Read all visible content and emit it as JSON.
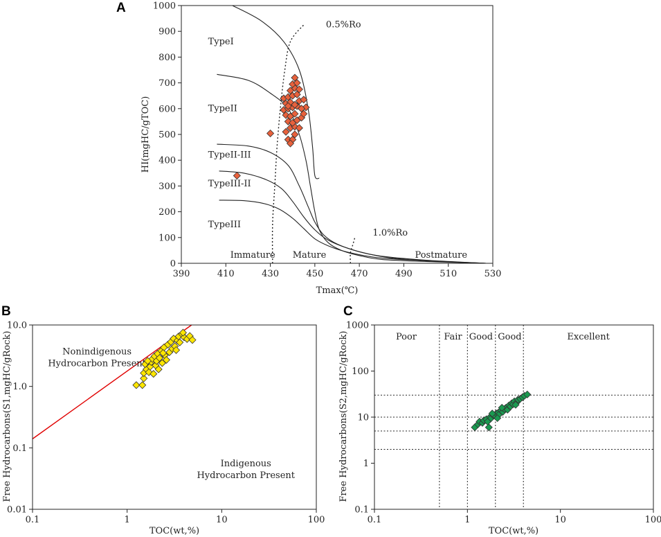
{
  "chart_data": [
    {
      "id": "A",
      "type": "scatter",
      "panel_label": "A",
      "xlabel": "Tmax(℃)",
      "ylabel": "HI(mgHC/gTOC)",
      "xlim": [
        390,
        530
      ],
      "ylim": [
        0,
        1000
      ],
      "xticks": [
        390,
        410,
        430,
        450,
        470,
        490,
        510,
        530
      ],
      "yticks": [
        0,
        100,
        200,
        300,
        400,
        500,
        600,
        700,
        800,
        900,
        1000
      ],
      "marker_color": "#e8613c",
      "type_labels": [
        {
          "text": "TypeI",
          "x": 402,
          "y": 850
        },
        {
          "text": "TypeII",
          "x": 402,
          "y": 590
        },
        {
          "text": "TypeII-III",
          "x": 402,
          "y": 410
        },
        {
          "text": "TypeIII-II",
          "x": 402,
          "y": 298
        },
        {
          "text": "TypeIII",
          "x": 402,
          "y": 140
        }
      ],
      "maturity_labels": [
        {
          "text": "Immature",
          "x": 412,
          "y": 22
        },
        {
          "text": "Mature",
          "x": 440,
          "y": 22
        },
        {
          "text": "Postmature",
          "x": 495,
          "y": 22
        }
      ],
      "ro_labels": [
        {
          "text": "0.5%Ro",
          "x": 455,
          "y": 915
        },
        {
          "text": "1.0%Ro",
          "x": 476,
          "y": 108
        }
      ],
      "type_curves": [
        [
          [
            413,
            1000
          ],
          [
            426,
            940
          ],
          [
            436,
            860
          ],
          [
            443,
            750
          ],
          [
            447,
            600
          ],
          [
            449,
            450
          ],
          [
            450,
            340
          ],
          [
            452,
            330
          ]
        ],
        [
          [
            406,
            733
          ],
          [
            420,
            710
          ],
          [
            430,
            660
          ],
          [
            438,
            600
          ],
          [
            443,
            500
          ],
          [
            446,
            400
          ],
          [
            448,
            300
          ],
          [
            450,
            200
          ],
          [
            452,
            130
          ],
          [
            456,
            80
          ],
          [
            462,
            50
          ],
          [
            470,
            30
          ],
          [
            480,
            15
          ],
          [
            500,
            7
          ],
          [
            527,
            0
          ]
        ],
        [
          [
            406,
            462
          ],
          [
            420,
            455
          ],
          [
            430,
            430
          ],
          [
            438,
            380
          ],
          [
            443,
            300
          ],
          [
            447,
            220
          ],
          [
            450,
            160
          ],
          [
            454,
            110
          ],
          [
            460,
            75
          ],
          [
            470,
            45
          ],
          [
            485,
            20
          ],
          [
            505,
            8
          ],
          [
            527,
            0
          ]
        ],
        [
          [
            407,
            358
          ],
          [
            418,
            350
          ],
          [
            428,
            325
          ],
          [
            435,
            290
          ],
          [
            440,
            240
          ],
          [
            445,
            180
          ],
          [
            450,
            130
          ],
          [
            456,
            90
          ],
          [
            465,
            58
          ],
          [
            478,
            30
          ],
          [
            500,
            12
          ],
          [
            527,
            0
          ]
        ],
        [
          [
            407,
            245
          ],
          [
            418,
            243
          ],
          [
            427,
            232
          ],
          [
            434,
            210
          ],
          [
            440,
            175
          ],
          [
            445,
            135
          ],
          [
            450,
            95
          ],
          [
            456,
            68
          ],
          [
            464,
            45
          ],
          [
            478,
            22
          ],
          [
            500,
            10
          ],
          [
            527,
            0
          ]
        ]
      ],
      "ro_lines": [
        [
          [
            431,
            0
          ],
          [
            431,
            150
          ],
          [
            432,
            300
          ],
          [
            433,
            450
          ],
          [
            434.5,
            600
          ],
          [
            436.5,
            750
          ],
          [
            439,
            860
          ],
          [
            445,
            925
          ]
        ],
        [
          [
            466,
            0
          ],
          [
            466,
            40
          ],
          [
            467,
            70
          ],
          [
            468,
            100
          ]
        ]
      ],
      "points": [
        [
          430,
          504
        ],
        [
          415,
          340
        ],
        [
          438,
          480
        ],
        [
          440,
          480
        ],
        [
          439,
          465
        ],
        [
          441,
          500
        ],
        [
          437,
          510
        ],
        [
          439,
          525
        ],
        [
          441,
          530
        ],
        [
          443,
          525
        ],
        [
          438,
          550
        ],
        [
          440,
          545
        ],
        [
          442,
          555
        ],
        [
          444,
          565
        ],
        [
          437,
          575
        ],
        [
          439,
          570
        ],
        [
          441,
          580
        ],
        [
          445,
          580
        ],
        [
          436,
          595
        ],
        [
          438,
          600
        ],
        [
          440,
          605
        ],
        [
          442,
          610
        ],
        [
          446,
          605
        ],
        [
          437,
          620
        ],
        [
          439,
          625
        ],
        [
          441,
          615
        ],
        [
          443,
          630
        ],
        [
          445,
          635
        ],
        [
          436,
          640
        ],
        [
          438,
          645
        ],
        [
          440,
          650
        ],
        [
          442,
          655
        ],
        [
          439,
          670
        ],
        [
          441,
          680
        ],
        [
          443,
          675
        ],
        [
          440,
          695
        ],
        [
          442,
          700
        ],
        [
          441,
          720
        ],
        [
          438,
          610
        ],
        [
          444,
          600
        ]
      ]
    },
    {
      "id": "B",
      "type": "scatter",
      "panel_label": "B",
      "xlabel": "TOC(wt,%)",
      "ylabel": "Free Hydrocarbons(S1,mgHC/gRock)",
      "xscale": "log",
      "yscale": "log",
      "xlim": [
        0.1,
        100
      ],
      "ylim": [
        0.01,
        10
      ],
      "xticks": [
        0.1,
        1,
        10,
        100
      ],
      "xtick_labels": [
        "0.1",
        "1",
        "10",
        "100"
      ],
      "yticks": [
        0.01,
        0.1,
        1,
        10
      ],
      "ytick_labels": [
        "0.01",
        "0.1",
        "1.0",
        "10.0"
      ],
      "marker_color": "#ffe600",
      "regions": [
        {
          "lines": [
            "Nonindigenous",
            "Hydrocarbon Present"
          ],
          "x": 0.48,
          "y": 3.3
        },
        {
          "lines": [
            "Indigenous",
            "Hydrocarbon Present"
          ],
          "x": 18,
          "y": 0.05
        }
      ],
      "reference_line": {
        "color": "#e00000",
        "points": [
          [
            0.1,
            0.14
          ],
          [
            4.8,
            10
          ]
        ]
      },
      "points": [
        [
          1.25,
          1.05
        ],
        [
          1.45,
          1.05
        ],
        [
          1.5,
          1.35
        ],
        [
          1.5,
          1.65
        ],
        [
          1.6,
          1.9
        ],
        [
          1.55,
          2.3
        ],
        [
          1.7,
          1.7
        ],
        [
          1.75,
          2.1
        ],
        [
          1.8,
          2.5
        ],
        [
          1.85,
          2.8
        ],
        [
          1.9,
          1.6
        ],
        [
          1.95,
          3.1
        ],
        [
          2.0,
          2.2
        ],
        [
          2.05,
          2.6
        ],
        [
          2.1,
          3.4
        ],
        [
          2.15,
          1.9
        ],
        [
          2.2,
          2.9
        ],
        [
          2.3,
          3.8
        ],
        [
          2.35,
          2.4
        ],
        [
          2.45,
          4.3
        ],
        [
          2.5,
          3.2
        ],
        [
          2.6,
          2.7
        ],
        [
          2.7,
          4.8
        ],
        [
          2.8,
          3.6
        ],
        [
          2.9,
          5.3
        ],
        [
          3.0,
          4.1
        ],
        [
          3.1,
          6.0
        ],
        [
          3.2,
          4.5
        ],
        [
          3.4,
          5.6
        ],
        [
          3.5,
          6.5
        ],
        [
          3.6,
          5.2
        ],
        [
          3.8,
          7.1
        ],
        [
          4.0,
          6.3
        ],
        [
          4.3,
          5.9
        ],
        [
          4.6,
          6.6
        ],
        [
          4.9,
          5.7
        ],
        [
          3.3,
          3.9
        ],
        [
          2.4,
          3.5
        ],
        [
          1.65,
          2.6
        ],
        [
          3.9,
          7.5
        ]
      ]
    },
    {
      "id": "C",
      "type": "scatter",
      "panel_label": "C",
      "xlabel": "TOC(wt,%)",
      "ylabel": "Free Hydrocarbons(S2,mgHC/gRock)",
      "xscale": "log",
      "yscale": "log",
      "xlim": [
        0.1,
        100
      ],
      "ylim": [
        0.1,
        1000
      ],
      "xticks": [
        0.1,
        1,
        10,
        100
      ],
      "xtick_labels": [
        "0.1",
        "1",
        "10",
        "100"
      ],
      "yticks": [
        0.1,
        1,
        10,
        100,
        1000
      ],
      "ytick_labels": [
        "0.1",
        "1",
        "10",
        "100",
        "1000"
      ],
      "marker_color": "#1a9a50",
      "vgrid": [
        0.5,
        1,
        2,
        4
      ],
      "hgrid": [
        2,
        5,
        10,
        30
      ],
      "class_labels": [
        {
          "text": "Poor",
          "x": 0.22
        },
        {
          "text": "Fair",
          "x": 0.7
        },
        {
          "text": "Good",
          "x": 1.4
        },
        {
          "text": "Good",
          "x": 2.85
        },
        {
          "text": "Excellent",
          "x": 20
        }
      ],
      "points": [
        [
          1.2,
          6
        ],
        [
          1.3,
          7
        ],
        [
          1.35,
          8
        ],
        [
          1.45,
          7.5
        ],
        [
          1.5,
          8.5
        ],
        [
          1.6,
          9
        ],
        [
          1.65,
          8
        ],
        [
          1.75,
          10
        ],
        [
          1.8,
          9.5
        ],
        [
          1.7,
          6
        ],
        [
          1.9,
          11
        ],
        [
          2.0,
          10.5
        ],
        [
          2.05,
          12
        ],
        [
          2.15,
          12.5
        ],
        [
          2.2,
          11.5
        ],
        [
          2.3,
          14
        ],
        [
          2.4,
          13
        ],
        [
          2.5,
          15
        ],
        [
          2.6,
          16
        ],
        [
          2.7,
          14.5
        ],
        [
          2.8,
          18
        ],
        [
          2.9,
          17
        ],
        [
          3.0,
          20
        ],
        [
          3.1,
          19
        ],
        [
          3.2,
          22
        ],
        [
          3.4,
          21
        ],
        [
          3.5,
          24
        ],
        [
          3.7,
          25
        ],
        [
          3.9,
          27
        ],
        [
          4.1,
          29
        ],
        [
          4.4,
          31
        ],
        [
          2.35,
          16
        ],
        [
          1.85,
          12
        ],
        [
          3.3,
          18.5
        ],
        [
          2.1,
          9.5
        ]
      ]
    }
  ]
}
